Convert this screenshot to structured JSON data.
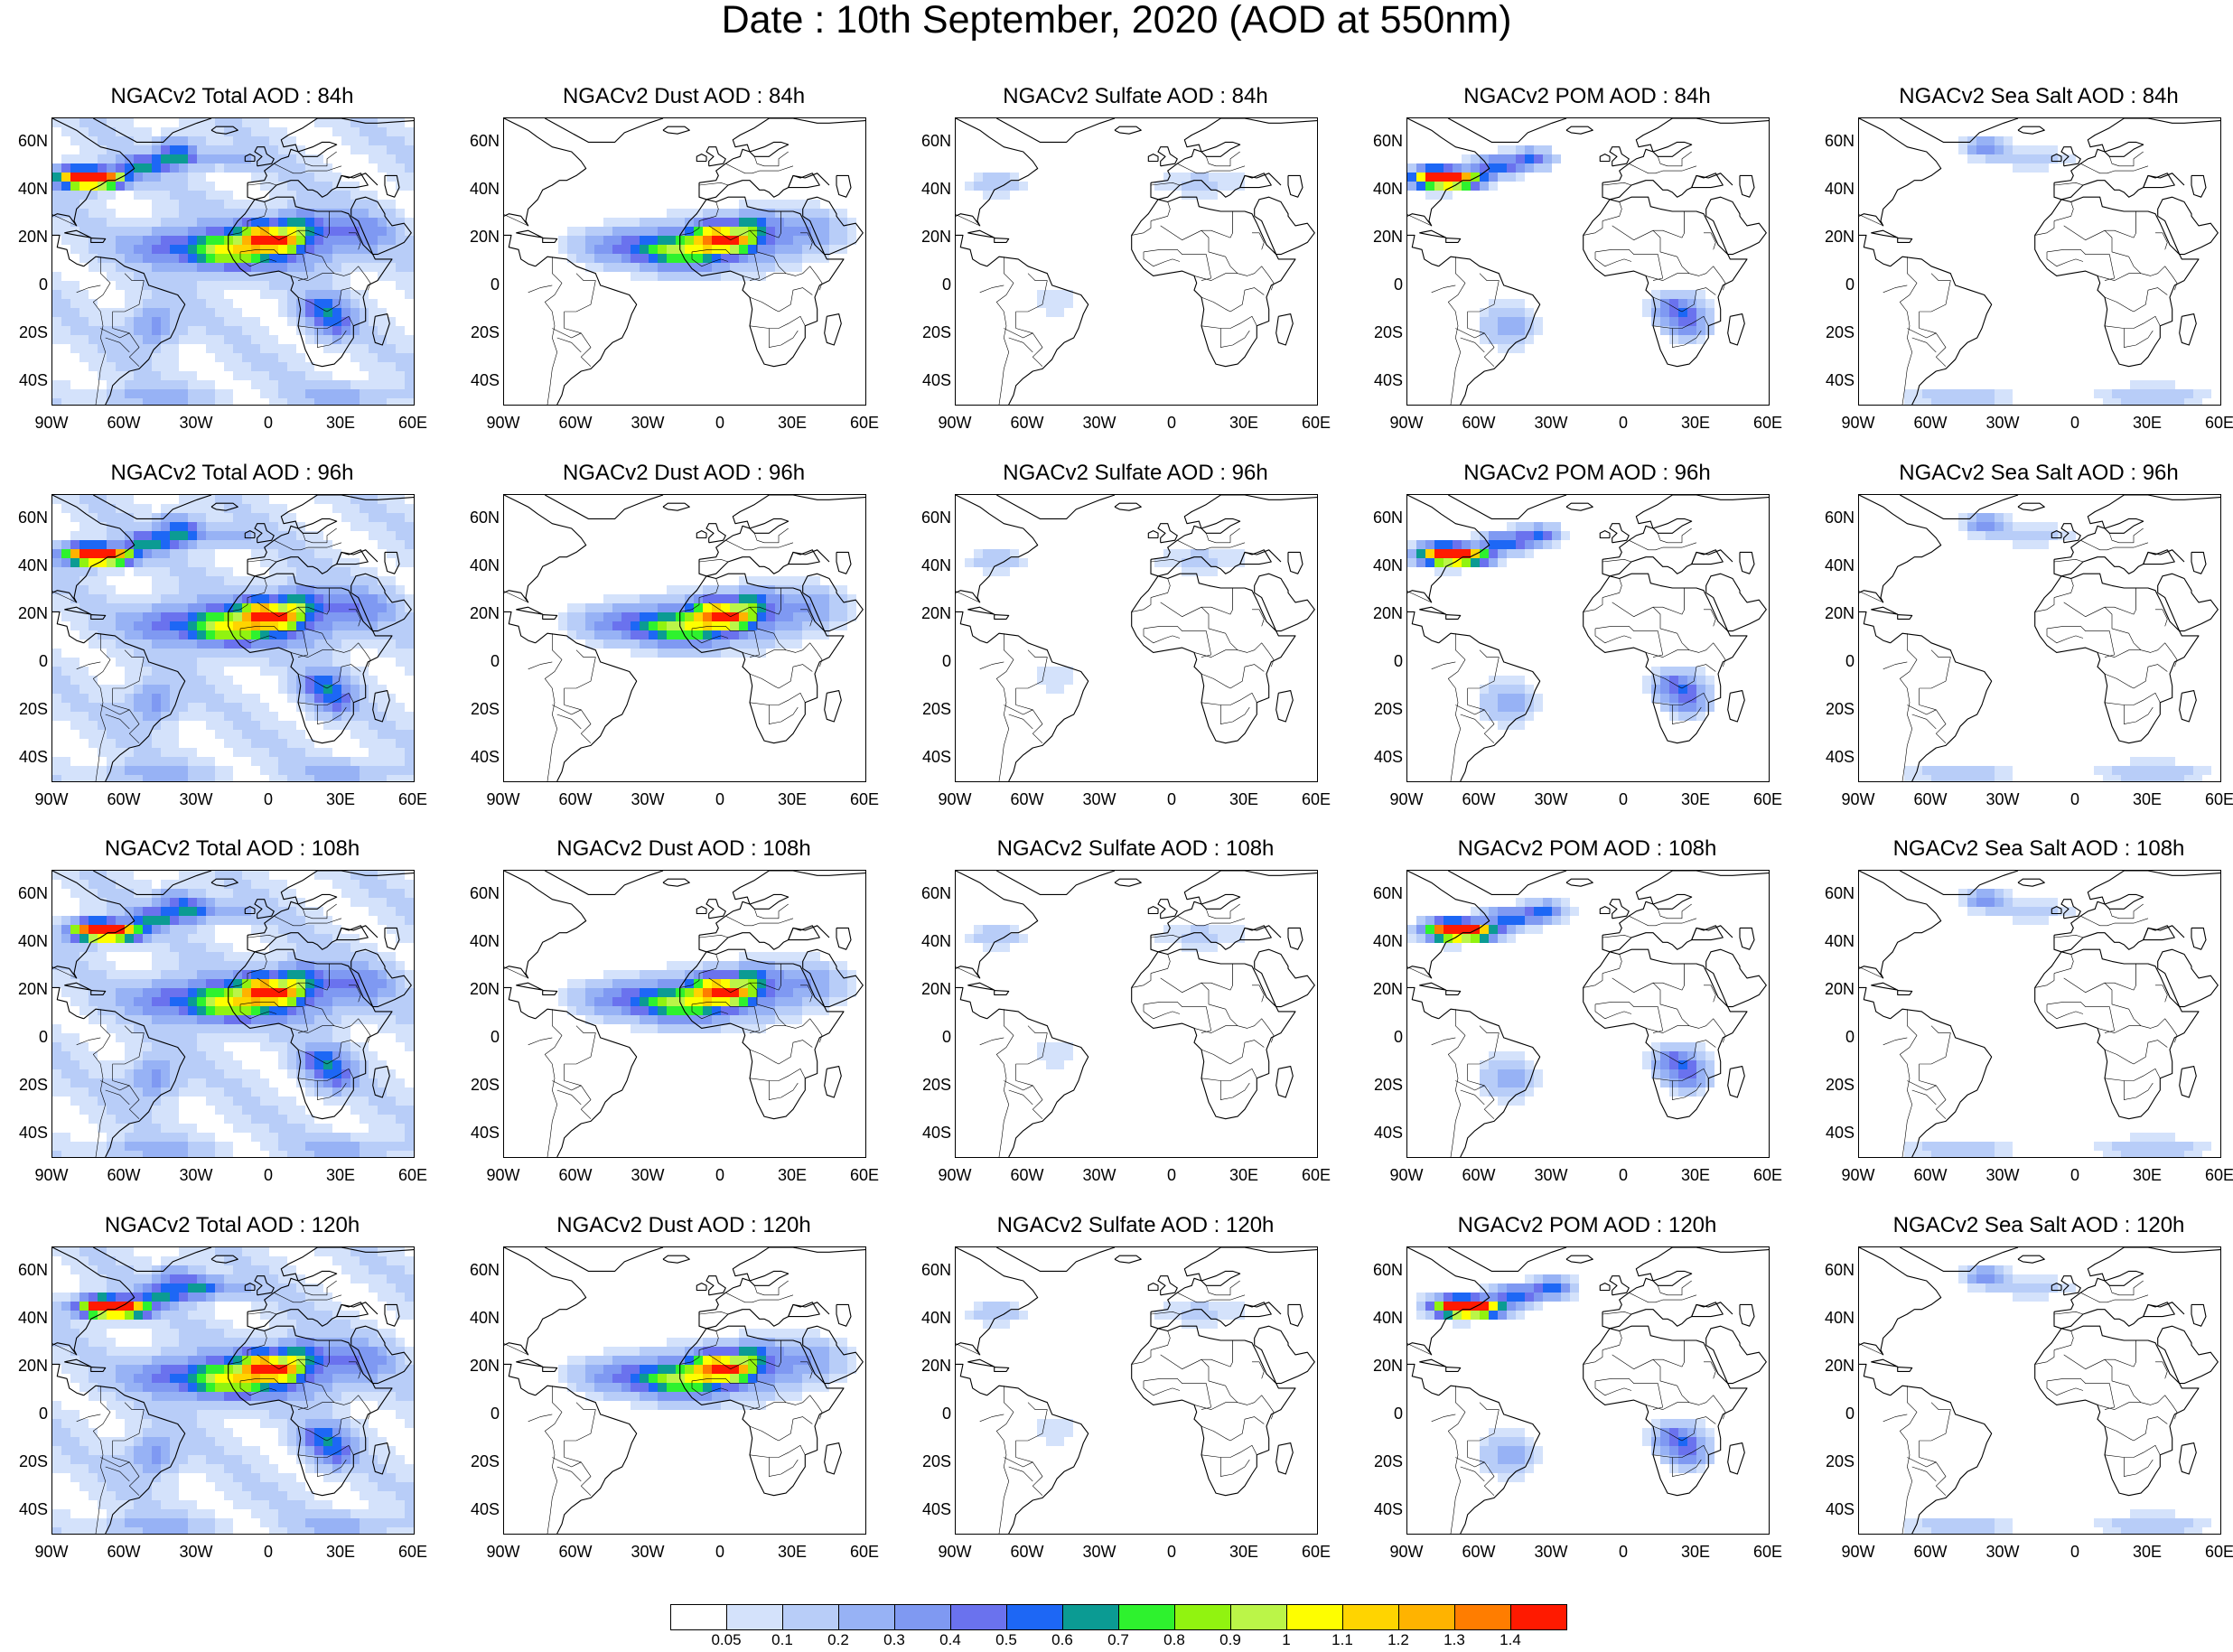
{
  "title": "Date : 10th September, 2020 (AOD at 550nm)",
  "panel_titles": [
    [
      "NGACv2 Total AOD : 84h",
      "NGACv2 Dust AOD : 84h",
      "NGACv2 Sulfate AOD : 84h",
      "NGACv2 POM AOD : 84h",
      "NGACv2 Sea Salt AOD : 84h"
    ],
    [
      "NGACv2 Total AOD : 96h",
      "NGACv2 Dust AOD : 96h",
      "NGACv2 Sulfate AOD : 96h",
      "NGACv2 POM AOD : 96h",
      "NGACv2 Sea Salt AOD : 96h"
    ],
    [
      "NGACv2 Total AOD : 108h",
      "NGACv2 Dust AOD : 108h",
      "NGACv2 Sulfate AOD : 108h",
      "NGACv2 POM AOD : 108h",
      "NGACv2 Sea Salt AOD : 108h"
    ],
    [
      "NGACv2 Total AOD : 120h",
      "NGACv2 Dust AOD : 120h",
      "NGACv2 Sulfate AOD : 120h",
      "NGACv2 POM AOD : 120h",
      "NGACv2 Sea Salt  AOD : 120h"
    ]
  ],
  "lat_ticks": [
    "60N",
    "40N",
    "20N",
    "0",
    "20S",
    "40S"
  ],
  "lon_ticks": [
    "90W",
    "60W",
    "30W",
    "0",
    "30E",
    "60E"
  ],
  "colorbar": {
    "colors": [
      "#ffffff",
      "#d4e2fb",
      "#b8cdf8",
      "#97b2f5",
      "#7f99f2",
      "#6a72ee",
      "#1d67f5",
      "#0b9b93",
      "#2ef22e",
      "#91f310",
      "#bbf548",
      "#fefe00",
      "#ffd400",
      "#ffb300",
      "#ff7d00",
      "#ff1a00"
    ],
    "labels": [
      "0.05",
      "0.1",
      "0.2",
      "0.3",
      "0.4",
      "0.5",
      "0.6",
      "0.7",
      "0.8",
      "0.9",
      "1",
      "1.1",
      "1.2",
      "1.3",
      "1.4"
    ]
  }
}
